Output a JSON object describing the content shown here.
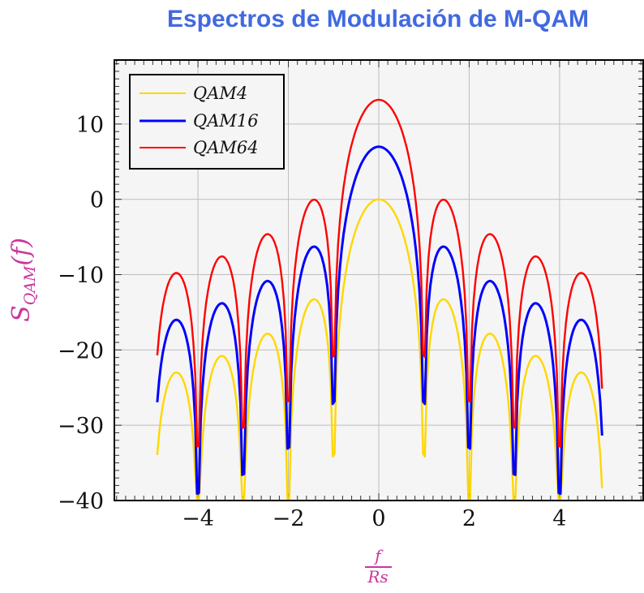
{
  "chart_data": {
    "type": "line",
    "title": "Espectros de Modulación de M-QAM",
    "xlabel_num": "f",
    "xlabel_den": "Rs",
    "ylabel_main": "S",
    "ylabel_sub": "QAM",
    "ylabel_arg": "(f)",
    "xlim": [
      -5.85,
      5.85
    ],
    "ylim": [
      -40,
      18.5
    ],
    "x_ticks": [
      -4,
      -2,
      0,
      2,
      4
    ],
    "x_tick_labels": [
      "−4",
      "−2",
      "0",
      "2",
      "4"
    ],
    "y_ticks": [
      -40,
      -30,
      -20,
      -10,
      0,
      10
    ],
    "y_tick_labels": [
      "−40",
      "−30",
      "−20",
      "−10",
      "0",
      "10"
    ],
    "grid": true,
    "legend_position": "top-left",
    "x_range": [
      -4.9,
      4.97
    ],
    "curve": "10*log10(sinc^2(f)) + offset_db",
    "x": [
      -4.75,
      -4.5,
      -4.25,
      -4,
      -3.75,
      -3.5,
      -3.25,
      -3,
      -2.75,
      -2.5,
      -2.25,
      -2,
      -1.75,
      -1.5,
      -1.25,
      -1,
      -0.75,
      -0.5,
      -0.25,
      0,
      0.25,
      0.5,
      0.75,
      1,
      1.25,
      1.5,
      1.75,
      2,
      2.25,
      2.5,
      2.75,
      3,
      3.25,
      3.5,
      3.75,
      4,
      4.25,
      4.5,
      4.75
    ],
    "series": [
      {
        "name": "QAM4",
        "color": "#FFD700",
        "offset_db": 0,
        "values": [
          -26.49,
          -23.01,
          -25.52,
          -40,
          -24.43,
          -20.82,
          -23.19,
          -40,
          -21.74,
          -17.9,
          -20.0,
          -40,
          -17.81,
          -13.46,
          -14.89,
          -40,
          -10.45,
          -3.92,
          -0.91,
          0,
          -0.91,
          -3.92,
          -10.45,
          -40,
          -14.89,
          -13.46,
          -17.81,
          -40,
          -20.0,
          -17.9,
          -21.74,
          -40,
          -23.19,
          -20.82,
          -24.43,
          -40,
          -25.52,
          -23.01,
          -26.49
        ]
      },
      {
        "name": "QAM16",
        "color": "#0000FF",
        "offset_db": 6.99,
        "values": [
          -19.5,
          -16.02,
          -18.53,
          -40,
          -17.44,
          -13.83,
          -16.2,
          -40,
          -14.75,
          -10.91,
          -13.01,
          -40,
          -10.82,
          -6.47,
          -7.9,
          -40,
          -3.46,
          3.07,
          6.08,
          6.99,
          6.08,
          3.07,
          -3.46,
          -40,
          -7.9,
          -6.47,
          -10.82,
          -40,
          -13.01,
          -10.91,
          -14.75,
          -40,
          -16.2,
          -13.83,
          -17.44,
          -40,
          -18.53,
          -16.02,
          -19.5
        ]
      },
      {
        "name": "QAM64",
        "color": "#FF0000",
        "offset_db": 13.22,
        "values": [
          -13.27,
          -9.79,
          -12.3,
          -40,
          -11.21,
          -7.6,
          -9.97,
          -40,
          -8.52,
          -4.68,
          -6.78,
          -40,
          -4.59,
          -0.24,
          -1.67,
          -40,
          2.77,
          9.3,
          12.31,
          13.22,
          12.31,
          9.3,
          2.77,
          -40,
          -1.67,
          -0.24,
          -4.59,
          -40,
          -6.78,
          -4.68,
          -8.52,
          -40,
          -9.97,
          -7.6,
          -11.21,
          -40,
          -12.3,
          -9.79,
          -13.27
        ]
      }
    ],
    "colors": {
      "title": "#4169E1",
      "axis_label": "#C8379E",
      "plot_bg": "#F5F5F5",
      "grid": "#BDBDBD"
    }
  }
}
